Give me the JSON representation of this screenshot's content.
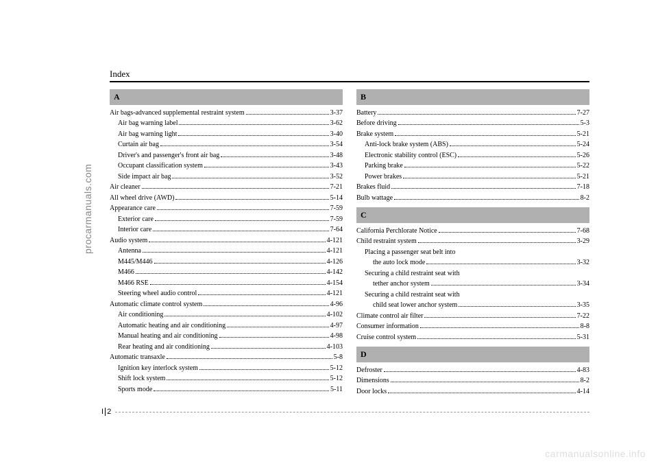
{
  "header": {
    "title": "Index"
  },
  "sidebar": {
    "text": "procarmanuals.com"
  },
  "footer": {
    "prefix": "I",
    "num": "2"
  },
  "watermark": "carmanualsonline.info",
  "left": {
    "sections": [
      {
        "letter": "A",
        "entries": [
          {
            "label": "Air bags-advanced supplemental restraint system",
            "page": "3-37",
            "indent": 0
          },
          {
            "label": "Air bag warning label",
            "page": "3-62",
            "indent": 1
          },
          {
            "label": "Air bag warning light",
            "page": "3-40",
            "indent": 1
          },
          {
            "label": "Curtain air bag",
            "page": "3-54",
            "indent": 1
          },
          {
            "label": "Driver's and passenger's front air bag",
            "page": "3-48",
            "indent": 1
          },
          {
            "label": "Occupant classification system",
            "page": "3-43",
            "indent": 1
          },
          {
            "label": "Side impact air bag",
            "page": "3-52",
            "indent": 1
          },
          {
            "label": "Air cleaner",
            "page": "7-21",
            "indent": 0
          },
          {
            "label": "All wheel drive (AWD)",
            "page": "5-14",
            "indent": 0
          },
          {
            "label": "Appearance care",
            "page": "7-59",
            "indent": 0
          },
          {
            "label": "Exterior care",
            "page": "7-59",
            "indent": 1
          },
          {
            "label": "Interior care",
            "page": "7-64",
            "indent": 1
          },
          {
            "label": "Audio system",
            "page": "4-121",
            "indent": 0
          },
          {
            "label": "Antenna",
            "page": "4-121",
            "indent": 1
          },
          {
            "label": "M445/M446",
            "page": "4-126",
            "indent": 1
          },
          {
            "label": "M466",
            "page": "4-142",
            "indent": 1
          },
          {
            "label": "M466 RSE",
            "page": "4-154",
            "indent": 1
          },
          {
            "label": "Steering wheel audio control",
            "page": "4-121",
            "indent": 1
          },
          {
            "label": "Automatic climate control system",
            "page": "4-96",
            "indent": 0
          },
          {
            "label": "Air conditioning",
            "page": "4-102",
            "indent": 1
          },
          {
            "label": "Automatic heating and air conditioning",
            "page": "4-97",
            "indent": 1
          },
          {
            "label": "Manual heating and air conditioning",
            "page": "4-98",
            "indent": 1
          },
          {
            "label": "Rear heating and air conditioning",
            "page": "4-103",
            "indent": 1
          },
          {
            "label": "Automatic transaxle",
            "page": "5-8",
            "indent": 0
          },
          {
            "label": "Ignition key interlock system",
            "page": "5-12",
            "indent": 1
          },
          {
            "label": "Shift lock system",
            "page": "5-12",
            "indent": 1
          },
          {
            "label": "Sports mode",
            "page": "5-11",
            "indent": 1
          }
        ]
      }
    ]
  },
  "right": {
    "sections": [
      {
        "letter": "B",
        "entries": [
          {
            "label": "Battery",
            "page": "7-27",
            "indent": 0
          },
          {
            "label": "Before driving",
            "page": "5-3",
            "indent": 0
          },
          {
            "label": "Brake system",
            "page": "5-21",
            "indent": 0
          },
          {
            "label": "Anti-lock brake system (ABS)",
            "page": "5-24",
            "indent": 1
          },
          {
            "label": "Electronic stability control (ESC)",
            "page": "5-26",
            "indent": 1
          },
          {
            "label": "Parking brake",
            "page": "5-22",
            "indent": 1
          },
          {
            "label": "Power brakes",
            "page": "5-21",
            "indent": 1
          },
          {
            "label": "Brakes fluid",
            "page": "7-18",
            "indent": 0
          },
          {
            "label": "Bulb wattage",
            "page": "8-2",
            "indent": 0
          }
        ]
      },
      {
        "letter": "C",
        "entries": [
          {
            "label": "California Perchlorate Notice",
            "page": "7-68",
            "indent": 0
          },
          {
            "label": "Child restraint system",
            "page": "3-29",
            "indent": 0
          },
          {
            "label": "Placing a passenger seat belt into",
            "indent": 1,
            "nobreak": true
          },
          {
            "label": "the auto lock mode",
            "page": "3-32",
            "indent": 2
          },
          {
            "label": "Securing a child restraint seat with",
            "indent": 1,
            "nobreak": true
          },
          {
            "label": "tether anchor system",
            "page": "3-34",
            "indent": 2
          },
          {
            "label": "Securing a child restraint seat with",
            "indent": 1,
            "nobreak": true
          },
          {
            "label": "child seat lower anchor system",
            "page": "3-35",
            "indent": 2
          },
          {
            "label": "Climate control air filter",
            "page": "7-22",
            "indent": 0
          },
          {
            "label": "Consumer information",
            "page": "8-8",
            "indent": 0
          },
          {
            "label": "Cruise control system",
            "page": "5-31",
            "indent": 0
          }
        ]
      },
      {
        "letter": "D",
        "entries": [
          {
            "label": "Defroster",
            "page": "4-83",
            "indent": 0
          },
          {
            "label": "Dimensions",
            "page": "8-2",
            "indent": 0
          },
          {
            "label": "Door locks",
            "page": "4-14",
            "indent": 0
          }
        ]
      }
    ]
  }
}
